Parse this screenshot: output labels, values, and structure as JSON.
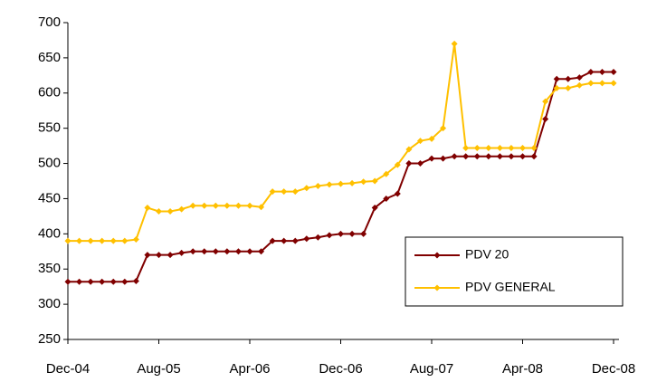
{
  "chart_data": {
    "type": "line",
    "categories": [
      "Dec-04",
      null,
      null,
      null,
      null,
      null,
      null,
      null,
      "Aug-05",
      null,
      null,
      null,
      null,
      null,
      null,
      null,
      "Apr-06",
      null,
      null,
      null,
      null,
      null,
      null,
      null,
      "Dec-06",
      null,
      null,
      null,
      null,
      null,
      null,
      null,
      "Aug-07",
      null,
      null,
      null,
      null,
      null,
      null,
      null,
      "Apr-08",
      null,
      null,
      null,
      null,
      null,
      null,
      null,
      "Dec-08"
    ],
    "series": [
      {
        "name": "PDV 20",
        "color": "#800000",
        "values": [
          332,
          332,
          332,
          332,
          332,
          332,
          333,
          370,
          370,
          370,
          373,
          375,
          375,
          375,
          375,
          375,
          375,
          375,
          390,
          390,
          390,
          393,
          395,
          398,
          400,
          400,
          400,
          437,
          450,
          457,
          500,
          500,
          507,
          507,
          510,
          510,
          510,
          510,
          510,
          510,
          510,
          510,
          563,
          620,
          620,
          622,
          630,
          630,
          630
        ]
      },
      {
        "name": "PDV GENERAL",
        "color": "#ffc000",
        "values": [
          390,
          390,
          390,
          390,
          390,
          390,
          392,
          437,
          432,
          432,
          435,
          440,
          440,
          440,
          440,
          440,
          440,
          438,
          460,
          460,
          460,
          465,
          468,
          470,
          471,
          472,
          474,
          475,
          485,
          498,
          520,
          532,
          535,
          550,
          670,
          522,
          522,
          522,
          522,
          522,
          522,
          522,
          588,
          607,
          607,
          611,
          614,
          614,
          614
        ]
      }
    ],
    "ylim": [
      250,
      700
    ],
    "yticks": [
      250,
      300,
      350,
      400,
      450,
      500,
      550,
      600,
      650,
      700
    ]
  }
}
